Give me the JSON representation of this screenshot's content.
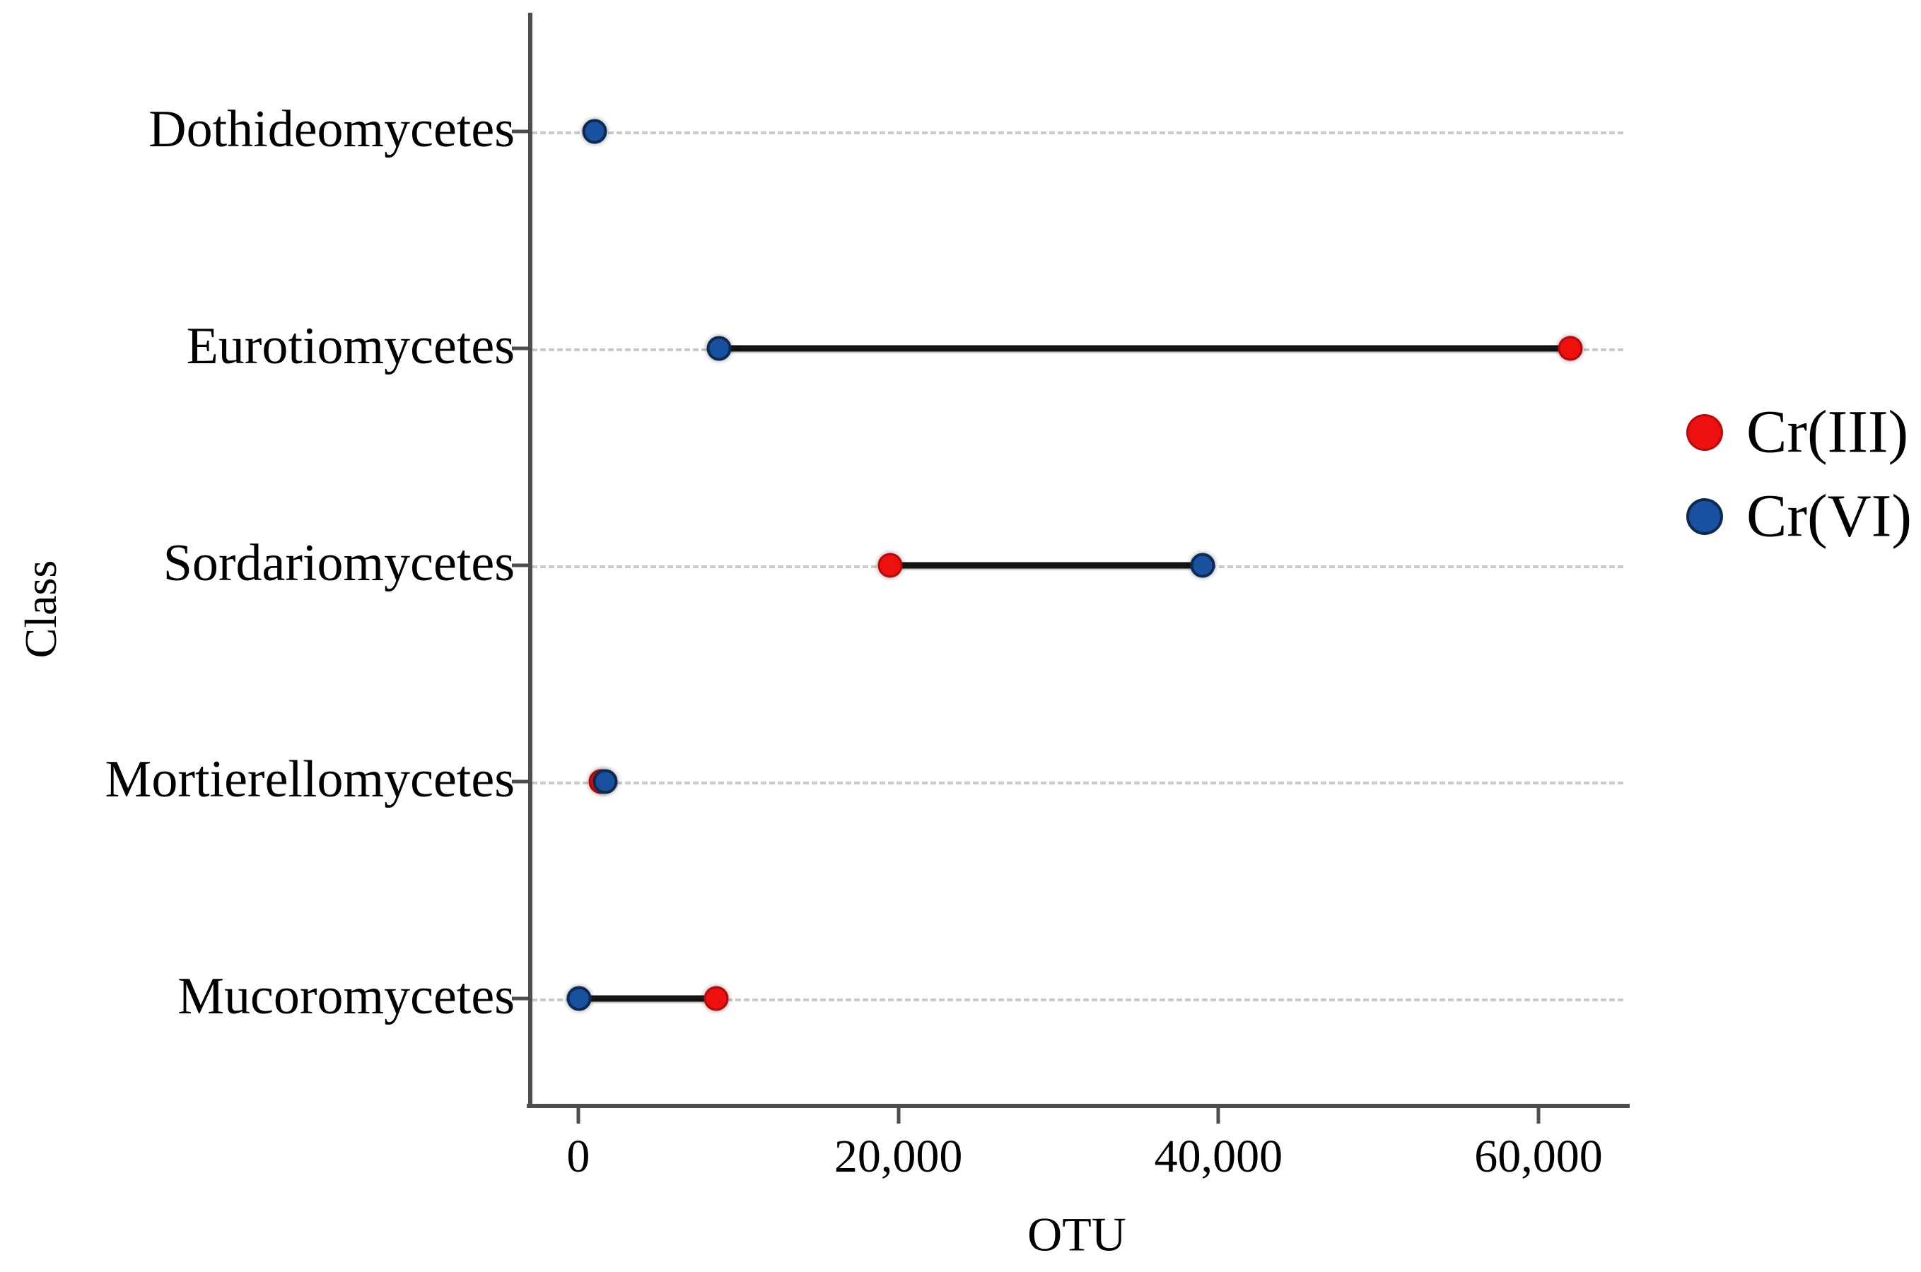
{
  "figure": {
    "kind": "dumbbell dot plot",
    "background": "#ffffff",
    "text_color": "#000000"
  },
  "chart_data": {
    "type": "scatter",
    "subtype": "dumbbell",
    "title": "",
    "xlabel": "OTU",
    "ylabel": "Class",
    "xlim": [
      -3000,
      65300
    ],
    "grid": "horizontal dashed",
    "grid_color": "#c9c9c9",
    "axis_color": "#4d4d4d",
    "connector_color": "#141414",
    "legend_position": "right",
    "categories": [
      "Dothideomycetes",
      "Eurotiomycetes",
      "Sordariomycetes",
      "Mortierellomycetes",
      "Mucoromycetes"
    ],
    "x_ticks": [
      {
        "value": 0,
        "label": "0"
      },
      {
        "value": 20000,
        "label": "20,000"
      },
      {
        "value": 40000,
        "label": "40,000"
      },
      {
        "value": 60000,
        "label": "60,000"
      }
    ],
    "series": [
      {
        "name": "Cr(III)",
        "color": "#ee0f0f",
        "marker": "circle",
        "values": [
          null,
          62000,
          19500,
          1400,
          8600
        ]
      },
      {
        "name": "Cr(VI)",
        "color": "#17519f",
        "marker": "circle",
        "values": [
          1000,
          8800,
          39000,
          1700,
          50
        ]
      }
    ],
    "notes": "Cr(III) point for Mortierellomycetes is almost fully hidden behind the Cr(VI) point; Dothideomycetes shows only a Cr(VI) point."
  },
  "legend": {
    "items": [
      {
        "name": "Cr(III)",
        "color": "#ee0f0f"
      },
      {
        "name": "Cr(VI)",
        "color": "#17519f"
      }
    ]
  }
}
